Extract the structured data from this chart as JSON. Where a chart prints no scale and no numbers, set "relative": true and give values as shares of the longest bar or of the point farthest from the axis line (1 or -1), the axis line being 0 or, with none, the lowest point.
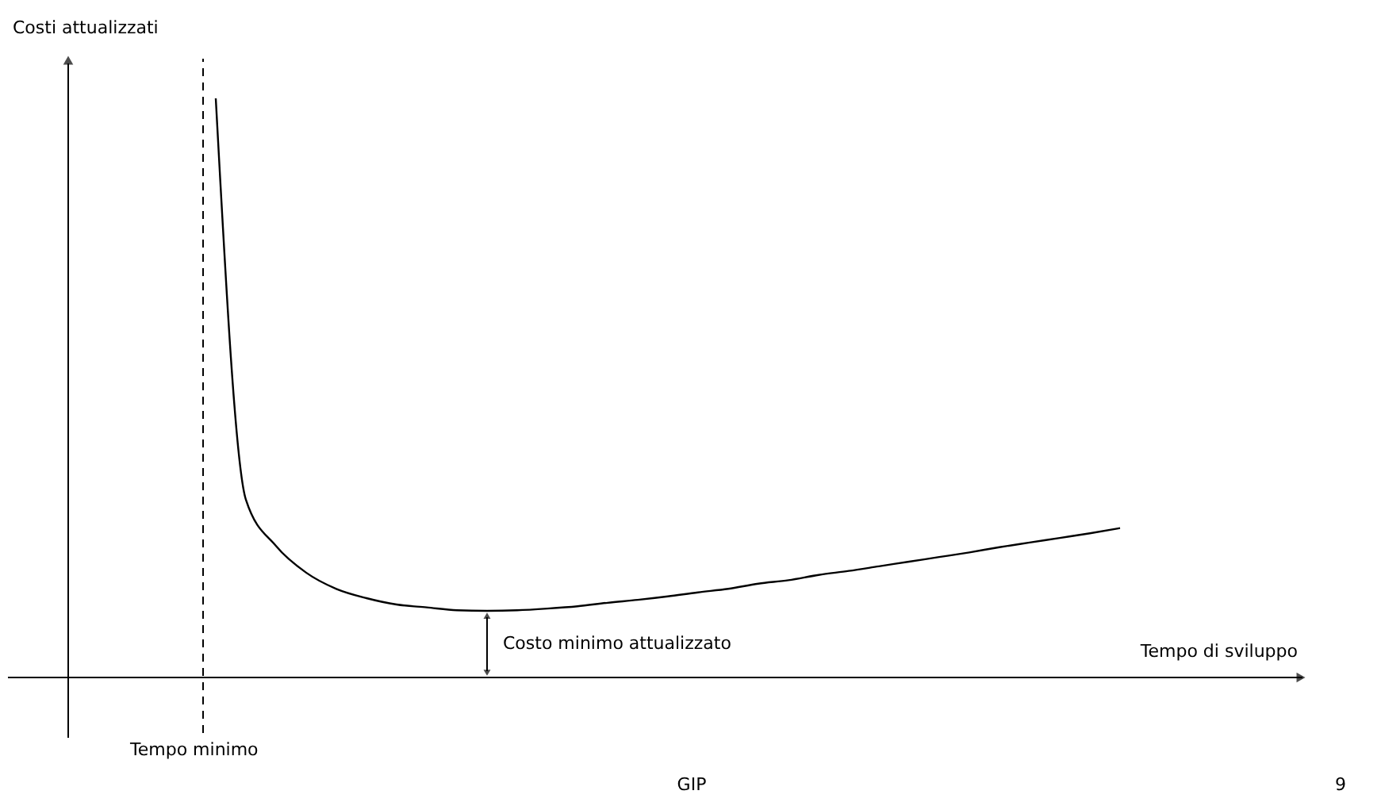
{
  "chart_data": {
    "type": "line",
    "relative": true,
    "xlabel": "Tempo di sviluppo",
    "ylabel": "Costi attualizzati",
    "categories": [
      null,
      null,
      null,
      null,
      null,
      null,
      null,
      null,
      null,
      null,
      null,
      null,
      null,
      null,
      null,
      null,
      null,
      null,
      null,
      null,
      null,
      null,
      null,
      null,
      null,
      null,
      null,
      null,
      null,
      null,
      null
    ],
    "series": [
      {
        "color": "#000000",
        "values": [
          1.0,
          0.307,
          0.227,
          0.181,
          0.153,
          0.137,
          0.126,
          0.121,
          0.116,
          0.115,
          0.116,
          0.119,
          0.123,
          0.129,
          0.134,
          0.14,
          0.147,
          0.153,
          0.162,
          0.168,
          0.177,
          0.184,
          0.192,
          0.2,
          0.208,
          0.216,
          0.225,
          0.233,
          0.241,
          0.249,
          0.258
        ]
      }
    ],
    "ref_lines": [
      {
        "axis": "x",
        "label": "Tempo minimo",
        "line_style": "dashed",
        "color": "#000000"
      }
    ],
    "annotations": [
      "Costo minimo attualizzato",
      "GIP",
      "9"
    ],
    "marker": "none",
    "line_style": "solid"
  }
}
